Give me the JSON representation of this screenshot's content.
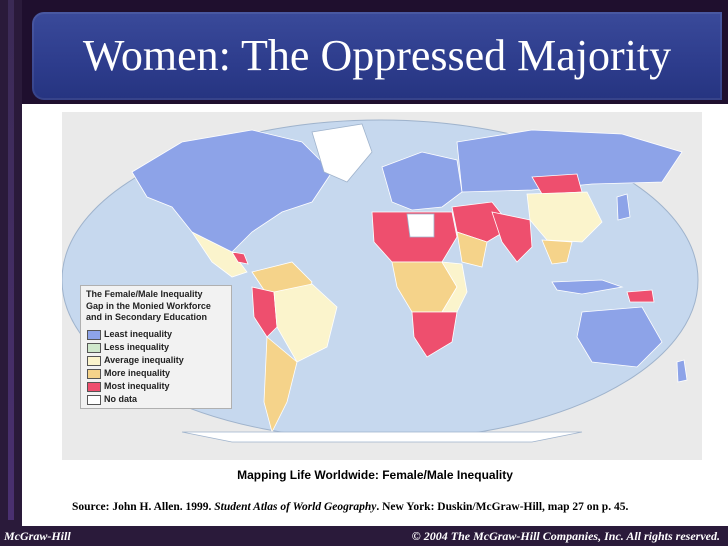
{
  "slide": {
    "title": "Women: The Oppressed Majority"
  },
  "legend": {
    "title_lines": [
      "The Female/Male Inequality",
      "Gap in the Monied Workforce",
      "and in Secondary Education"
    ],
    "items": [
      {
        "label": "Least inequality",
        "color": "#8da3e8"
      },
      {
        "label": "Less inequality",
        "color": "#cfe8cc"
      },
      {
        "label": "Average inequality",
        "color": "#fbf4cc"
      },
      {
        "label": "More inequality",
        "color": "#f5d38a"
      },
      {
        "label": "Most inequality",
        "color": "#ee4f6e"
      },
      {
        "label": "No data",
        "color": "#ffffff"
      }
    ]
  },
  "map": {
    "ocean_color": "#c6d8ee"
  },
  "caption": "Mapping Life Worldwide: Female/Male Inequality",
  "source": {
    "prefix": "Source: John H. Allen. 1999. ",
    "book": "Student Atlas of World Geography",
    "suffix": ". New York: Duskin/McGraw-Hill, map 27 on p. 45."
  },
  "footer": {
    "publisher": "McGraw-Hill",
    "copyright": "© 2004 The McGraw-Hill Companies, Inc. All rights reserved."
  }
}
